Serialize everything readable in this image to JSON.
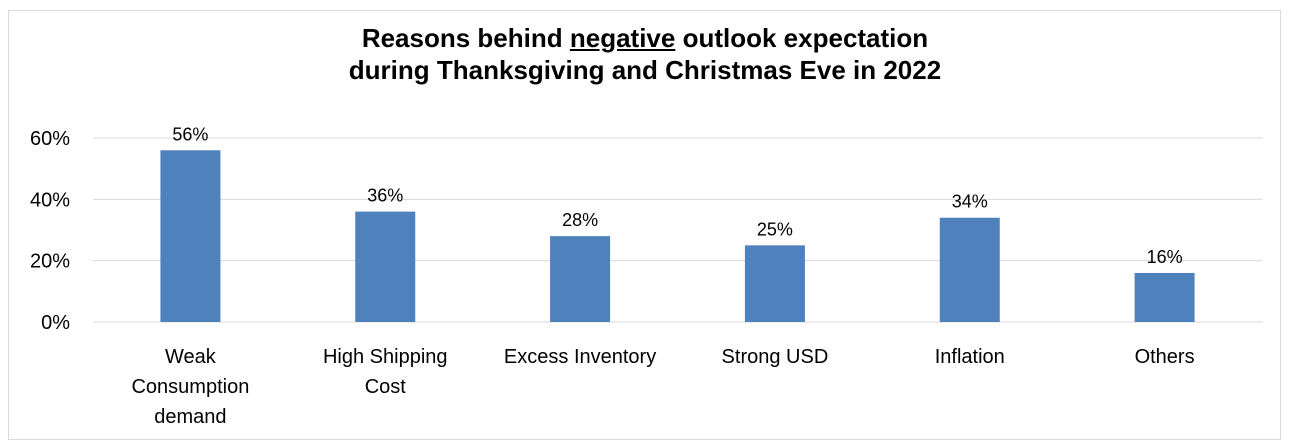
{
  "chart_data": {
    "type": "bar",
    "title_parts": {
      "line1_before": "Reasons behind ",
      "line1_underlined": "negative",
      "line1_after": " outlook expectation",
      "line2": "during Thanksgiving and Christmas Eve in 2022"
    },
    "categories": [
      [
        "Weak",
        "Consumption",
        "demand"
      ],
      [
        "High Shipping",
        "Cost"
      ],
      [
        "Excess Inventory"
      ],
      [
        "Strong USD"
      ],
      [
        "Inflation"
      ],
      [
        "Others"
      ]
    ],
    "values": [
      56,
      36,
      28,
      25,
      34,
      16
    ],
    "data_labels": [
      "56%",
      "36%",
      "28%",
      "25%",
      "34%",
      "16%"
    ],
    "y_ticks": [
      {
        "value": 0,
        "label": "0%"
      },
      {
        "value": 20,
        "label": "20%"
      },
      {
        "value": 40,
        "label": "40%"
      },
      {
        "value": 60,
        "label": "60%"
      }
    ],
    "ylim": [
      0,
      60
    ],
    "grid": true,
    "bar_color": "#4f81bd",
    "grid_color": "#d9d9d9"
  }
}
